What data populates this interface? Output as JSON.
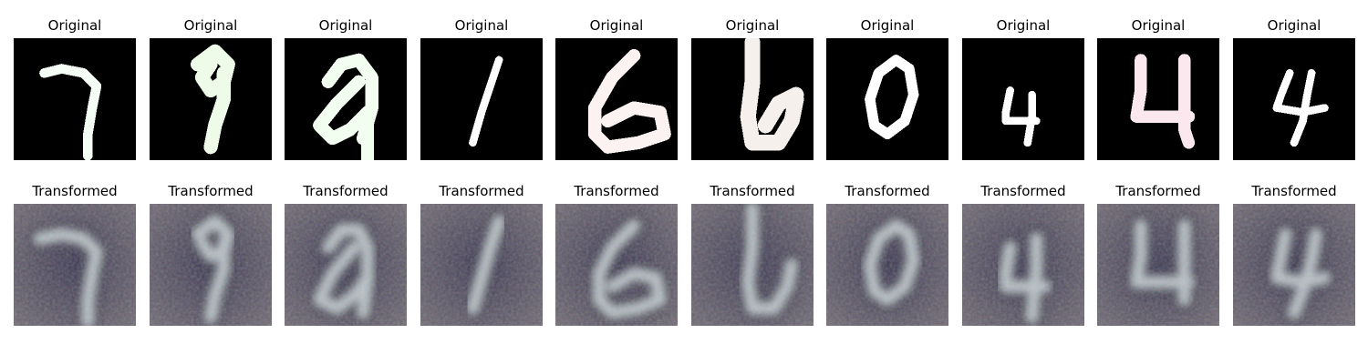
{
  "rows": [
    {
      "kind": "original",
      "panels": [
        {
          "title": "Original",
          "digit": "7"
        },
        {
          "title": "Original",
          "digit": "9"
        },
        {
          "title": "Original",
          "digit": "9"
        },
        {
          "title": "Original",
          "digit": "1"
        },
        {
          "title": "Original",
          "digit": "6"
        },
        {
          "title": "Original",
          "digit": "6"
        },
        {
          "title": "Original",
          "digit": "0"
        },
        {
          "title": "Original",
          "digit": "4"
        },
        {
          "title": "Original",
          "digit": "4"
        },
        {
          "title": "Original",
          "digit": "4"
        }
      ]
    },
    {
      "kind": "transformed",
      "panels": [
        {
          "title": "Transformed",
          "digit": "7"
        },
        {
          "title": "Transformed",
          "digit": "9"
        },
        {
          "title": "Transformed",
          "digit": "9"
        },
        {
          "title": "Transformed",
          "digit": "1"
        },
        {
          "title": "Transformed",
          "digit": "6"
        },
        {
          "title": "Transformed",
          "digit": "6"
        },
        {
          "title": "Transformed",
          "digit": "0"
        },
        {
          "title": "Transformed",
          "digit": "4"
        },
        {
          "title": "Transformed",
          "digit": "4"
        },
        {
          "title": "Transformed",
          "digit": "4"
        }
      ]
    }
  ],
  "colors": {
    "original_bg": "#000000",
    "original_strokes": [
      "#f5fff5",
      "#eefbe9",
      "#f2fff0",
      "#ffffff",
      "#fdf2f2",
      "#f5f0ec",
      "#ffffff",
      "#ffffff",
      "#fbe8ee",
      "#ffffff"
    ],
    "transformed_bg_inner": "#3a3650",
    "transformed_bg_outer": "#6c6670",
    "transformed_stroke": "#b9c2c8"
  }
}
